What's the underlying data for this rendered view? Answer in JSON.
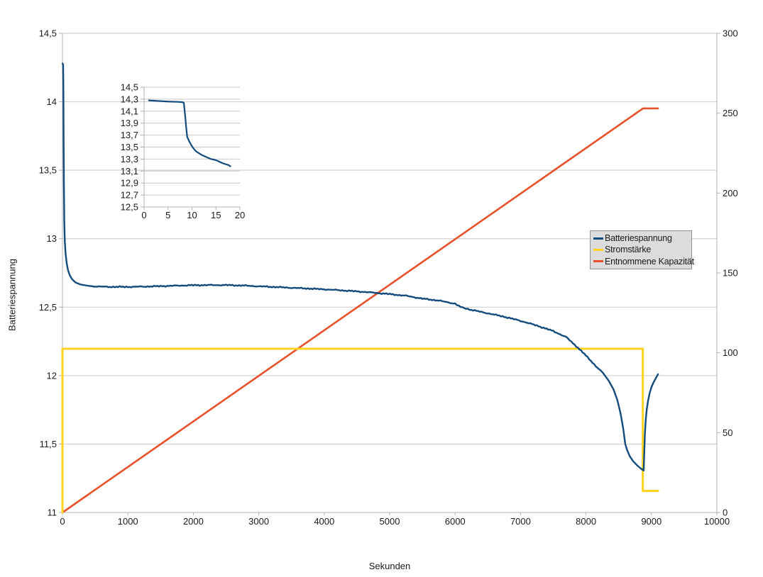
{
  "window": {
    "background": "#ffffff"
  },
  "colors": {
    "grid": "#c9c9c9",
    "axis": "#b0b0b0",
    "text": "#1a1a1a",
    "legend_bg": "#dcdcdc",
    "legend_border": "#919191",
    "series_blue": "#134b7c",
    "series_yellow": "#ffd320",
    "series_orange": "#e8502a"
  },
  "axes": {
    "y_left_title": "Batteriespannung",
    "x_title": "Sekunden"
  },
  "legend": {
    "items": [
      {
        "label": "Batteriespannung",
        "color": "#134b7c"
      },
      {
        "label": "Stromstärke",
        "color": "#ffd320"
      },
      {
        "label": "Entnommene Kapazität",
        "color": "#e8502a"
      }
    ]
  },
  "chart_data": [
    {
      "id": "main",
      "type": "line",
      "title": "",
      "xlabel": "Sekunden",
      "ylabel_left": "Batteriespannung",
      "xlim": [
        0,
        10000
      ],
      "ylim_left": [
        11,
        14.5
      ],
      "ylim_right": [
        0,
        300
      ],
      "grid": "horizontal",
      "legend_position": "right-inside",
      "x_ticks": [
        {
          "v": 0,
          "label": "0"
        },
        {
          "v": 1000,
          "label": "1000"
        },
        {
          "v": 2000,
          "label": "2000"
        },
        {
          "v": 3000,
          "label": "3000"
        },
        {
          "v": 4000,
          "label": "4000"
        },
        {
          "v": 5000,
          "label": "5000"
        },
        {
          "v": 6000,
          "label": "6000"
        },
        {
          "v": 7000,
          "label": "7000"
        },
        {
          "v": 8000,
          "label": "8000"
        },
        {
          "v": 9000,
          "label": "9000"
        },
        {
          "v": 10000,
          "label": "10000"
        }
      ],
      "y_left_ticks": [
        {
          "v": 14.5,
          "label": "14,5"
        },
        {
          "v": 14,
          "label": "14"
        },
        {
          "v": 13.5,
          "label": "13,5"
        },
        {
          "v": 13,
          "label": "13"
        },
        {
          "v": 12.5,
          "label": "12,5"
        },
        {
          "v": 12,
          "label": "12"
        },
        {
          "v": 11.5,
          "label": "11,5"
        },
        {
          "v": 11,
          "label": "11"
        }
      ],
      "y_right_ticks": [
        {
          "v": 300,
          "label": "300"
        },
        {
          "v": 250,
          "label": "250"
        },
        {
          "v": 200,
          "label": "200"
        },
        {
          "v": 150,
          "label": "150"
        },
        {
          "v": 100,
          "label": "100"
        },
        {
          "v": 50,
          "label": "50"
        },
        {
          "v": 0,
          "label": "0"
        }
      ],
      "series": [
        {
          "name": "Batteriespannung",
          "axis": "left",
          "color": "#134b7c",
          "width": 2.4,
          "noise": true,
          "points": [
            [
              3,
              14.28
            ],
            [
              10,
              14.27
            ],
            [
              14,
              14.1
            ],
            [
              18,
              13.7
            ],
            [
              22,
              13.4
            ],
            [
              28,
              13.12
            ],
            [
              36,
              12.98
            ],
            [
              48,
              12.89
            ],
            [
              65,
              12.82
            ],
            [
              85,
              12.77
            ],
            [
              110,
              12.735
            ],
            [
              145,
              12.705
            ],
            [
              200,
              12.68
            ],
            [
              280,
              12.665
            ],
            [
              400,
              12.655
            ],
            [
              550,
              12.65
            ],
            [
              750,
              12.648
            ],
            [
              1000,
              12.648
            ],
            [
              1250,
              12.65
            ],
            [
              1500,
              12.653
            ],
            [
              1750,
              12.657
            ],
            [
              2000,
              12.66
            ],
            [
              2250,
              12.661
            ],
            [
              2500,
              12.661
            ],
            [
              2750,
              12.658
            ],
            [
              3000,
              12.652
            ],
            [
              3250,
              12.647
            ],
            [
              3500,
              12.641
            ],
            [
              3750,
              12.636
            ],
            [
              4000,
              12.63
            ],
            [
              4250,
              12.623
            ],
            [
              4500,
              12.615
            ],
            [
              4750,
              12.606
            ],
            [
              5000,
              12.595
            ],
            [
              5250,
              12.583
            ],
            [
              5500,
              12.562
            ],
            [
              5750,
              12.548
            ],
            [
              6000,
              12.525
            ],
            [
              6085,
              12.5
            ],
            [
              6250,
              12.48
            ],
            [
              6500,
              12.455
            ],
            [
              6750,
              12.43
            ],
            [
              7000,
              12.4
            ],
            [
              7250,
              12.365
            ],
            [
              7500,
              12.325
            ],
            [
              7700,
              12.28
            ],
            [
              7850,
              12.215
            ],
            [
              7950,
              12.17
            ],
            [
              8050,
              12.12
            ],
            [
              8150,
              12.07
            ],
            [
              8225,
              12.035
            ],
            [
              8297,
              11.995
            ],
            [
              8350,
              11.96
            ],
            [
              8420,
              11.9
            ],
            [
              8480,
              11.82
            ],
            [
              8530,
              11.72
            ],
            [
              8570,
              11.61
            ],
            [
              8600,
              11.5
            ],
            [
              8630,
              11.455
            ],
            [
              8670,
              11.41
            ],
            [
              8720,
              11.375
            ],
            [
              8780,
              11.345
            ],
            [
              8840,
              11.32
            ],
            [
              8882,
              11.307
            ],
            [
              8890,
              11.43
            ],
            [
              8900,
              11.57
            ],
            [
              8912,
              11.67
            ],
            [
              8928,
              11.75
            ],
            [
              8948,
              11.815
            ],
            [
              8972,
              11.87
            ],
            [
              9000,
              11.915
            ],
            [
              9032,
              11.95
            ],
            [
              9066,
              11.98
            ],
            [
              9100,
              12.01
            ]
          ]
        },
        {
          "name": "Stromstärke",
          "axis": "right",
          "color": "#ffd320",
          "width": 3,
          "points": [
            [
              0,
              0
            ],
            [
              0,
              102.5
            ],
            [
              8868,
              102.5
            ],
            [
              8868,
              13.5
            ],
            [
              9100,
              13.5
            ]
          ]
        },
        {
          "name": "Entnommene Kapazität",
          "axis": "right",
          "color": "#e8502a",
          "width": 2.6,
          "points": [
            [
              0,
              0
            ],
            [
              8872,
              253
            ],
            [
              9100,
              253
            ]
          ]
        }
      ]
    },
    {
      "id": "inset",
      "type": "line",
      "title": "",
      "xlim": [
        0,
        20
      ],
      "ylim_left": [
        12.5,
        14.5
      ],
      "grid": "horizontal",
      "x_ticks": [
        {
          "v": 0,
          "label": "0"
        },
        {
          "v": 5,
          "label": "5"
        },
        {
          "v": 10,
          "label": "10"
        },
        {
          "v": 15,
          "label": "15"
        },
        {
          "v": 20,
          "label": "20"
        }
      ],
      "y_left_ticks": [
        {
          "v": 14.5,
          "label": "14,5"
        },
        {
          "v": 14.3,
          "label": "14,3"
        },
        {
          "v": 14.1,
          "label": "14,1"
        },
        {
          "v": 13.9,
          "label": "13,9"
        },
        {
          "v": 13.7,
          "label": "13,7"
        },
        {
          "v": 13.5,
          "label": "13,5"
        },
        {
          "v": 13.3,
          "label": "13,3"
        },
        {
          "v": 13.1,
          "label": "13,1"
        },
        {
          "v": 12.9,
          "label": "12,9"
        },
        {
          "v": 12.7,
          "label": "12,7"
        },
        {
          "v": 12.5,
          "label": "12,5"
        }
      ],
      "series": [
        {
          "name": "Batteriespannung",
          "axis": "left",
          "color": "#134b7c",
          "width": 2.2,
          "points": [
            [
              1,
              14.28
            ],
            [
              3,
              14.27
            ],
            [
              5,
              14.26
            ],
            [
              7,
              14.255
            ],
            [
              8,
              14.25
            ],
            [
              8.3,
              14.24
            ],
            [
              8.6,
              14.0
            ],
            [
              8.8,
              13.82
            ],
            [
              9,
              13.67
            ],
            [
              9.4,
              13.6
            ],
            [
              9.8,
              13.54
            ],
            [
              10.2,
              13.49
            ],
            [
              10.7,
              13.44
            ],
            [
              11.2,
              13.41
            ],
            [
              12,
              13.37
            ],
            [
              12.7,
              13.345
            ],
            [
              13.4,
              13.32
            ],
            [
              14,
              13.3
            ],
            [
              14.6,
              13.29
            ],
            [
              15.2,
              13.275
            ],
            [
              16,
              13.245
            ],
            [
              16.6,
              13.225
            ],
            [
              17.2,
              13.21
            ],
            [
              17.6,
              13.2
            ],
            [
              18,
              13.18
            ]
          ]
        }
      ]
    }
  ]
}
